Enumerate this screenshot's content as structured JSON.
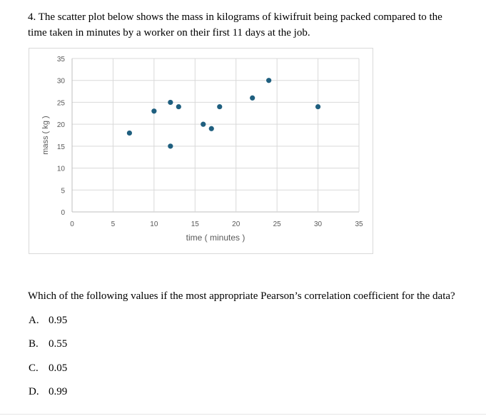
{
  "question": {
    "text_line1": "4. The scatter plot below shows the mass in kilograms of kiwifruit being packed compared to the",
    "text_line2": "time taken in minutes by a worker on their first 11 days at the job."
  },
  "chart_data": {
    "type": "scatter",
    "xlabel": "time ( minutes )",
    "ylabel": "mass ( kg )",
    "xlim": [
      0,
      35
    ],
    "ylim": [
      0,
      35
    ],
    "xticks": [
      "0",
      "5",
      "10",
      "15",
      "20",
      "25",
      "30",
      "35"
    ],
    "yticks": [
      "0",
      "5",
      "10",
      "15",
      "20",
      "25",
      "30",
      "35"
    ],
    "grid": true,
    "legend": "none",
    "point_color": "#1f5f7f",
    "points": [
      {
        "x": 7,
        "y": 18
      },
      {
        "x": 10,
        "y": 23
      },
      {
        "x": 12,
        "y": 25
      },
      {
        "x": 12,
        "y": 15
      },
      {
        "x": 13,
        "y": 24
      },
      {
        "x": 16,
        "y": 20
      },
      {
        "x": 17,
        "y": 19
      },
      {
        "x": 18,
        "y": 24
      },
      {
        "x": 22,
        "y": 26
      },
      {
        "x": 24,
        "y": 30
      },
      {
        "x": 30,
        "y": 24
      }
    ]
  },
  "prompt": "Which of the following values if the most appropriate Pearson’s correlation coefficient for the data?",
  "options": [
    {
      "letter": "A.",
      "value": "0.95"
    },
    {
      "letter": "B.",
      "value": "0.55"
    },
    {
      "letter": "C.",
      "value": "0.05"
    },
    {
      "letter": "D.",
      "value": "0.99"
    }
  ]
}
